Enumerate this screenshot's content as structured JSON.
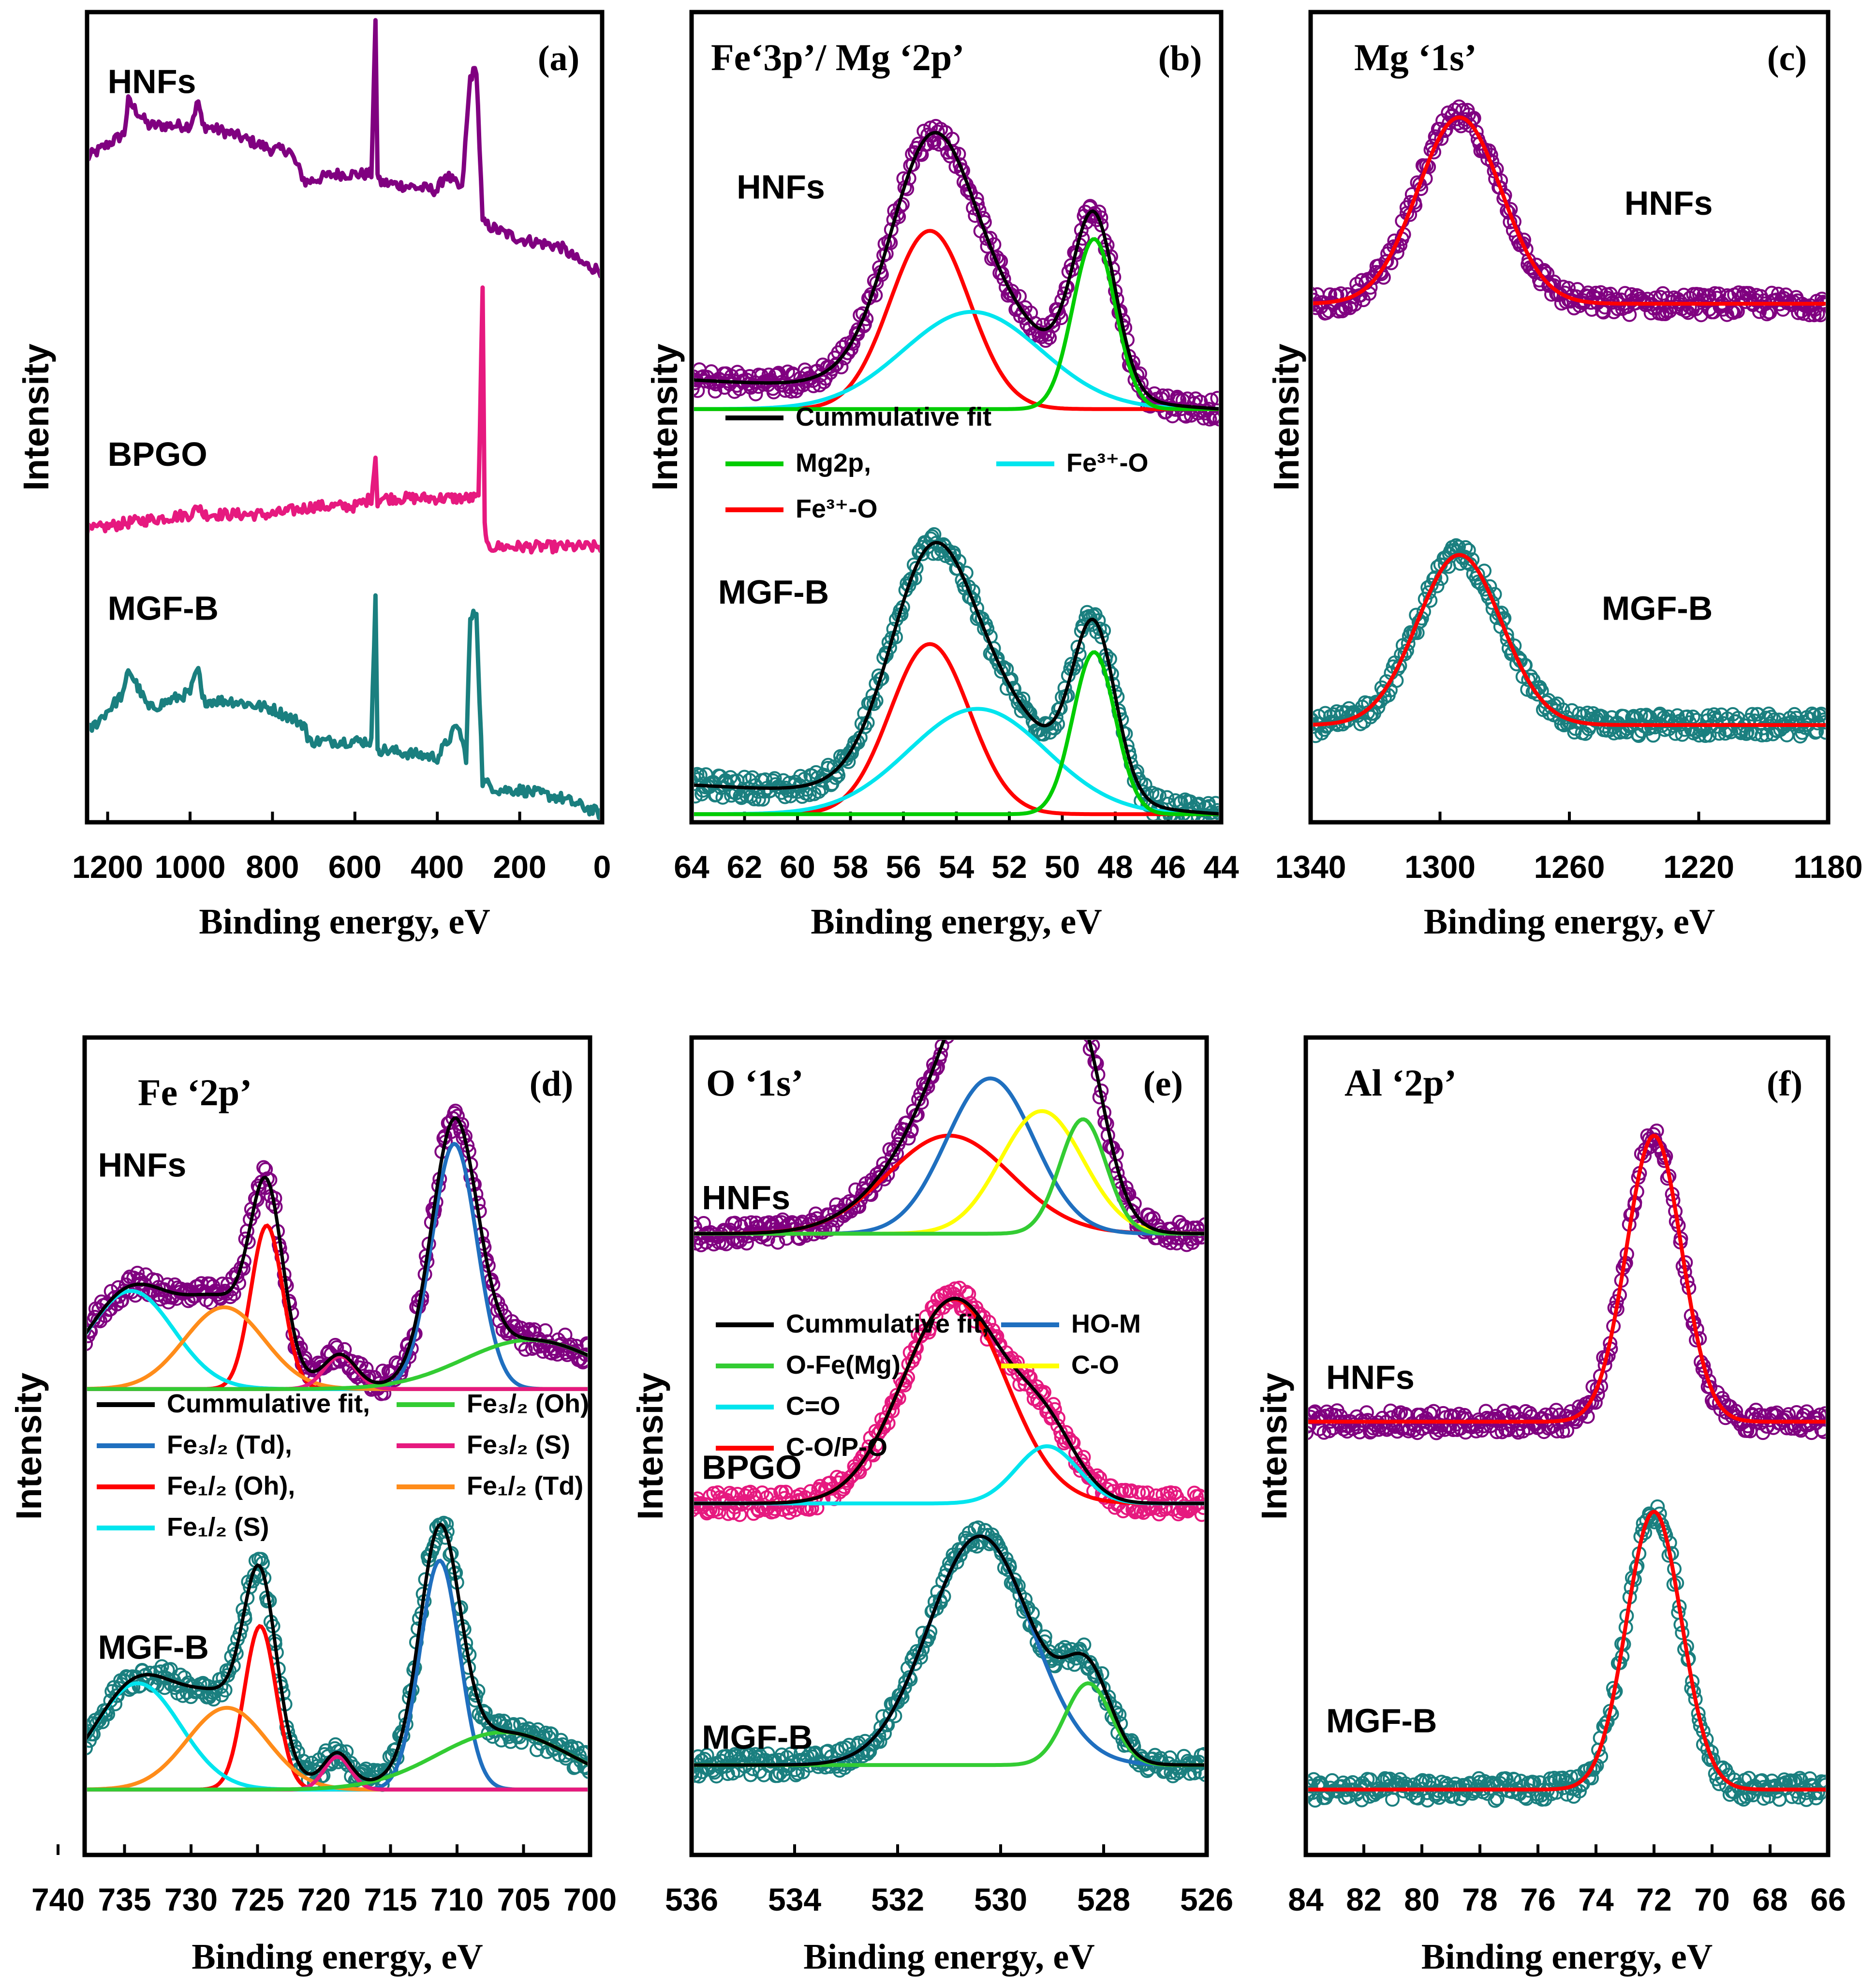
{
  "chart_data": [
    {
      "id": "a",
      "type": "line",
      "tag": "(a)",
      "title": "",
      "xlabel": "Binding energy, eV",
      "ylabel": "Intensity",
      "xlim": [
        1250,
        0
      ],
      "ylim": [
        0,
        100
      ],
      "xticks": [
        1200,
        1000,
        800,
        600,
        400,
        200,
        0
      ],
      "sample_labels": [
        {
          "text": "HNFs",
          "x": 1200,
          "y": 90
        },
        {
          "text": "BPGO",
          "x": 1200,
          "y": 44
        },
        {
          "text": "MGF-B",
          "x": 1200,
          "y": 25
        }
      ],
      "series": [
        {
          "name": "HNFs",
          "color": "#800080",
          "style": "line",
          "x": [
            1250,
            1160,
            1150,
            1100,
            1000,
            980,
            970,
            900,
            800,
            760,
            720,
            650,
            560,
            550,
            545,
            540,
            400,
            380,
            340,
            320,
            305,
            290,
            250,
            200,
            100,
            50,
            0
          ],
          "y": [
            82,
            85,
            89,
            86,
            86,
            89,
            86,
            85,
            83,
            83,
            79,
            80,
            80,
            99,
            80,
            79,
            78,
            80,
            78,
            92,
            93,
            74,
            73,
            72,
            71,
            69,
            68
          ]
        },
        {
          "name": "BPGO",
          "color": "#e6197f",
          "style": "line",
          "x": [
            1250,
            1150,
            1000,
            975,
            970,
            900,
            800,
            700,
            600,
            560,
            550,
            545,
            540,
            500,
            400,
            330,
            300,
            290,
            285,
            280,
            200,
            100,
            0
          ],
          "y": [
            36,
            37,
            38,
            39,
            38,
            38,
            38,
            39,
            39,
            40,
            45,
            39,
            40,
            40,
            40,
            40,
            40,
            66,
            37,
            34,
            34,
            34,
            34
          ]
        },
        {
          "name": "MGF-B",
          "color": "#1a7f7f",
          "style": "line",
          "x": [
            1250,
            1160,
            1150,
            1100,
            1000,
            980,
            970,
            900,
            800,
            720,
            715,
            650,
            560,
            550,
            545,
            540,
            400,
            350,
            330,
            320,
            305,
            290,
            250,
            200,
            100,
            50,
            0
          ],
          "y": [
            11,
            16,
            19,
            14,
            16,
            19,
            15,
            15,
            14,
            12,
            10,
            10,
            10,
            28,
            9,
            9,
            8,
            12,
            8,
            25,
            26,
            5,
            4,
            4,
            3,
            2,
            1
          ]
        }
      ]
    },
    {
      "id": "b",
      "type": "scatter",
      "tag": "(b)",
      "title": "Fe‘3p’/ Mg ‘2p’",
      "xlabel": "Binding energy, eV",
      "ylabel": "Intensity",
      "xlim": [
        64,
        44
      ],
      "ylim": [
        0,
        100
      ],
      "xticks": [
        64,
        62,
        60,
        58,
        56,
        54,
        52,
        50,
        48,
        46,
        44
      ],
      "sample_labels": [
        {
          "text": "HNFs",
          "x": 62.3,
          "y": 77
        },
        {
          "text": "MGF-B",
          "x": 63,
          "y": 27
        }
      ],
      "legend": [
        {
          "label": "Cummulative  fit",
          "color": "#000000"
        },
        {
          "label": "Mg2p,",
          "color": "#00cc00"
        },
        {
          "label": "Fe³⁺-O",
          "color": "#00e5ee"
        },
        {
          "label": "Fe³⁺-O",
          "color": "#ff0000"
        }
      ],
      "curves": [
        {
          "row": "HNFs",
          "baseline": 51,
          "bg_slope": 0.18,
          "peaks": [
            {
              "name": "Fe3+-O (red)",
              "center": 55.0,
              "height": 22,
              "width": 1.5,
              "color": "#ff0000"
            },
            {
              "name": "Fe3+-O (cyan)",
              "center": 53.4,
              "height": 12,
              "width": 2.6,
              "color": "#00e5ee"
            },
            {
              "name": "Mg2p",
              "center": 48.8,
              "height": 21,
              "width": 0.8,
              "color": "#00cc00"
            }
          ]
        },
        {
          "row": "MGF-B",
          "baseline": 1,
          "bg_slope": 0.18,
          "peaks": [
            {
              "name": "Fe3+-O (red)",
              "center": 55.0,
              "height": 21,
              "width": 1.5,
              "color": "#ff0000"
            },
            {
              "name": "Fe3+-O (cyan)",
              "center": 53.2,
              "height": 13,
              "width": 2.6,
              "color": "#00e5ee"
            },
            {
              "name": "Mg2p",
              "center": 48.8,
              "height": 20,
              "width": 0.8,
              "color": "#00cc00"
            }
          ]
        }
      ],
      "point_colors": [
        "#800080",
        "#1a7f7f"
      ]
    },
    {
      "id": "c",
      "type": "scatter",
      "tag": "(c)",
      "title": "Mg ‘1s’",
      "xlabel": "Binding energy, eV",
      "ylabel": "Intensity",
      "xlim": [
        1340,
        1180
      ],
      "ylim": [
        0,
        100
      ],
      "xticks": [
        1340,
        1300,
        1260,
        1220,
        1180
      ],
      "sample_labels": [
        {
          "text": "HNFs",
          "x": 1243,
          "y": 75
        },
        {
          "text": "MGF-B",
          "x": 1250,
          "y": 25
        }
      ],
      "curves": [
        {
          "row": "HNFs",
          "baseline": 64,
          "peaks": [
            {
              "center": 1294,
              "height": 23,
              "width": 13,
              "color": "#ff0000"
            }
          ]
        },
        {
          "row": "MGF-B",
          "baseline": 12,
          "peaks": [
            {
              "center": 1294,
              "height": 21,
              "width": 13,
              "color": "#ff0000"
            }
          ]
        }
      ],
      "point_colors": [
        "#800080",
        "#1a7f7f"
      ]
    },
    {
      "id": "d",
      "type": "scatter",
      "tag": "(d)",
      "title": "Fe ‘2p’",
      "xlabel": "Binding energy, eV",
      "ylabel": "Intensity",
      "xlim": [
        738,
        700
      ],
      "ylim": [
        0,
        100
      ],
      "xticks": [
        740,
        735,
        730,
        725,
        720,
        715,
        710,
        705,
        700
      ],
      "sample_labels": [
        {
          "text": "HNFs",
          "x": 737,
          "y": 83
        },
        {
          "text": "MGF-B",
          "x": 737,
          "y": 24
        }
      ],
      "legend": [
        {
          "label": "Cummulative fit,",
          "color": "#000000"
        },
        {
          "label": "Fe₃/₂ (Oh)",
          "color": "#33cc33"
        },
        {
          "label": "Fe₃/₂ (Td),",
          "color": "#1f6fbf"
        },
        {
          "label": "Fe₃/₂ (S)",
          "color": "#e6197f"
        },
        {
          "label": "Fe₁/₂ (Oh),",
          "color": "#ff0000"
        },
        {
          "label": "Fe₁/₂ (Td)",
          "color": "#ff8c1a"
        },
        {
          "label": "Fe₁/₂ (S)",
          "color": "#00e5ee"
        }
      ],
      "curves": [
        {
          "row": "HNFs",
          "baseline": 57,
          "peaks": [
            {
              "name": "Fe3/2 (Td)",
              "center": 710.2,
              "height": 30,
              "width": 1.7,
              "color": "#1f6fbf"
            },
            {
              "name": "Fe1/2 (Oh)",
              "center": 724.3,
              "height": 20,
              "width": 1.2,
              "color": "#ff0000"
            },
            {
              "name": "Fe1/2 (S)",
              "center": 734.5,
              "height": 12,
              "width": 3.2,
              "color": "#00e5ee"
            },
            {
              "name": "Fe1/2 (Td)",
              "center": 727.5,
              "height": 10,
              "width": 3.0,
              "color": "#ff8c1a"
            },
            {
              "name": "Fe3/2 (S)",
              "center": 718.8,
              "height": 4,
              "width": 1.2,
              "color": "#e6197f"
            },
            {
              "name": "Fe3/2 (Oh)",
              "center": 704.5,
              "height": 6,
              "width": 5.0,
              "color": "#33cc33"
            }
          ]
        },
        {
          "row": "MGF-B",
          "baseline": 8,
          "peaks": [
            {
              "name": "Fe3/2 (Td)",
              "center": 711.3,
              "height": 28,
              "width": 1.5,
              "color": "#1f6fbf"
            },
            {
              "name": "Fe1/2 (Oh)",
              "center": 724.8,
              "height": 20,
              "width": 1.2,
              "color": "#ff0000"
            },
            {
              "name": "Fe1/2 (S)",
              "center": 734.0,
              "height": 13,
              "width": 3.2,
              "color": "#00e5ee"
            },
            {
              "name": "Fe1/2 (Td)",
              "center": 727.3,
              "height": 10,
              "width": 3.0,
              "color": "#ff8c1a"
            },
            {
              "name": "Fe3/2 (S)",
              "center": 719.0,
              "height": 4,
              "width": 1.0,
              "color": "#e6197f"
            },
            {
              "name": "Fe3/2 (Oh)",
              "center": 706.5,
              "height": 7,
              "width": 5.0,
              "color": "#33cc33"
            }
          ]
        }
      ],
      "point_colors": [
        "#800080",
        "#1a7f7f"
      ]
    },
    {
      "id": "e",
      "type": "scatter",
      "tag": "(e)",
      "title": "O ‘1s’",
      "xlabel": "Binding energy, eV",
      "ylabel": "Intensity",
      "xlim": [
        536,
        526
      ],
      "ylim": [
        0,
        100
      ],
      "xticks": [
        536,
        534,
        532,
        530,
        528,
        526
      ],
      "sample_labels": [
        {
          "text": "HNFs",
          "x": 535.8,
          "y": 79
        },
        {
          "text": "BPGO",
          "x": 535.8,
          "y": 46
        },
        {
          "text": "MGF-B",
          "x": 535.8,
          "y": 13
        }
      ],
      "legend": [
        {
          "label": "Cummulative fit,",
          "color": "#000000"
        },
        {
          "label": "HO-M",
          "color": "#1f6fbf"
        },
        {
          "label": "O-Fe(Mg)",
          "color": "#33cc33"
        },
        {
          "label": "C-O",
          "color": "#ffff00"
        },
        {
          "label": "C=O",
          "color": "#00e5ee"
        },
        {
          "label": "C-O/P-O",
          "color": "#ff0000"
        }
      ],
      "curves": [
        {
          "row": "HNFs",
          "baseline": 76,
          "peaks": [
            {
              "name": "C-O/P-O",
              "center": 531.0,
              "height": 12,
              "width": 1.2,
              "color": "#ff0000"
            },
            {
              "name": "HO-M",
              "center": 530.2,
              "height": 19,
              "width": 0.85,
              "color": "#1f6fbf"
            },
            {
              "name": "C-O",
              "center": 529.2,
              "height": 15,
              "width": 0.8,
              "color": "#ffff00"
            },
            {
              "name": "O-Fe(Mg)",
              "center": 528.4,
              "height": 14,
              "width": 0.45,
              "color": "#33cc33"
            }
          ]
        },
        {
          "row": "BPGO",
          "baseline": 43,
          "peaks": [
            {
              "name": "C-O/P-O",
              "center": 530.9,
              "height": 25,
              "width": 1.0,
              "color": "#ff0000"
            },
            {
              "name": "C=O",
              "center": 529.1,
              "height": 7,
              "width": 0.6,
              "color": "#00e5ee"
            }
          ]
        },
        {
          "row": "MGF-B",
          "baseline": 11,
          "peaks": [
            {
              "name": "HO-M",
              "center": 530.4,
              "height": 28,
              "width": 1.0,
              "color": "#1f6fbf"
            },
            {
              "name": "O-Fe(Mg)",
              "center": 528.3,
              "height": 10,
              "width": 0.45,
              "color": "#33cc33"
            }
          ]
        }
      ],
      "point_colors": [
        "#800080",
        "#e6197f",
        "#1a7f7f"
      ]
    },
    {
      "id": "f",
      "type": "scatter",
      "tag": "(f)",
      "title": "Al ‘2p’",
      "xlabel": "Binding energy, eV",
      "ylabel": "Intensity",
      "xlim": [
        84,
        66
      ],
      "ylim": [
        0,
        100
      ],
      "xticks": [
        84,
        82,
        80,
        78,
        76,
        74,
        72,
        70,
        68,
        66
      ],
      "sample_labels": [
        {
          "text": "HNFs",
          "x": 83.3,
          "y": 57
        },
        {
          "text": "MGF-B",
          "x": 83.3,
          "y": 15
        }
      ],
      "curves": [
        {
          "row": "HNFs",
          "baseline": 53,
          "peaks": [
            {
              "center": 72.0,
              "height": 35,
              "width": 0.95,
              "color": "#ff0000"
            }
          ]
        },
        {
          "row": "MGF-B",
          "baseline": 8,
          "peaks": [
            {
              "center": 72.0,
              "height": 34,
              "width": 0.95,
              "color": "#ff0000"
            }
          ]
        }
      ],
      "point_colors": [
        "#800080",
        "#1a7f7f"
      ]
    }
  ]
}
